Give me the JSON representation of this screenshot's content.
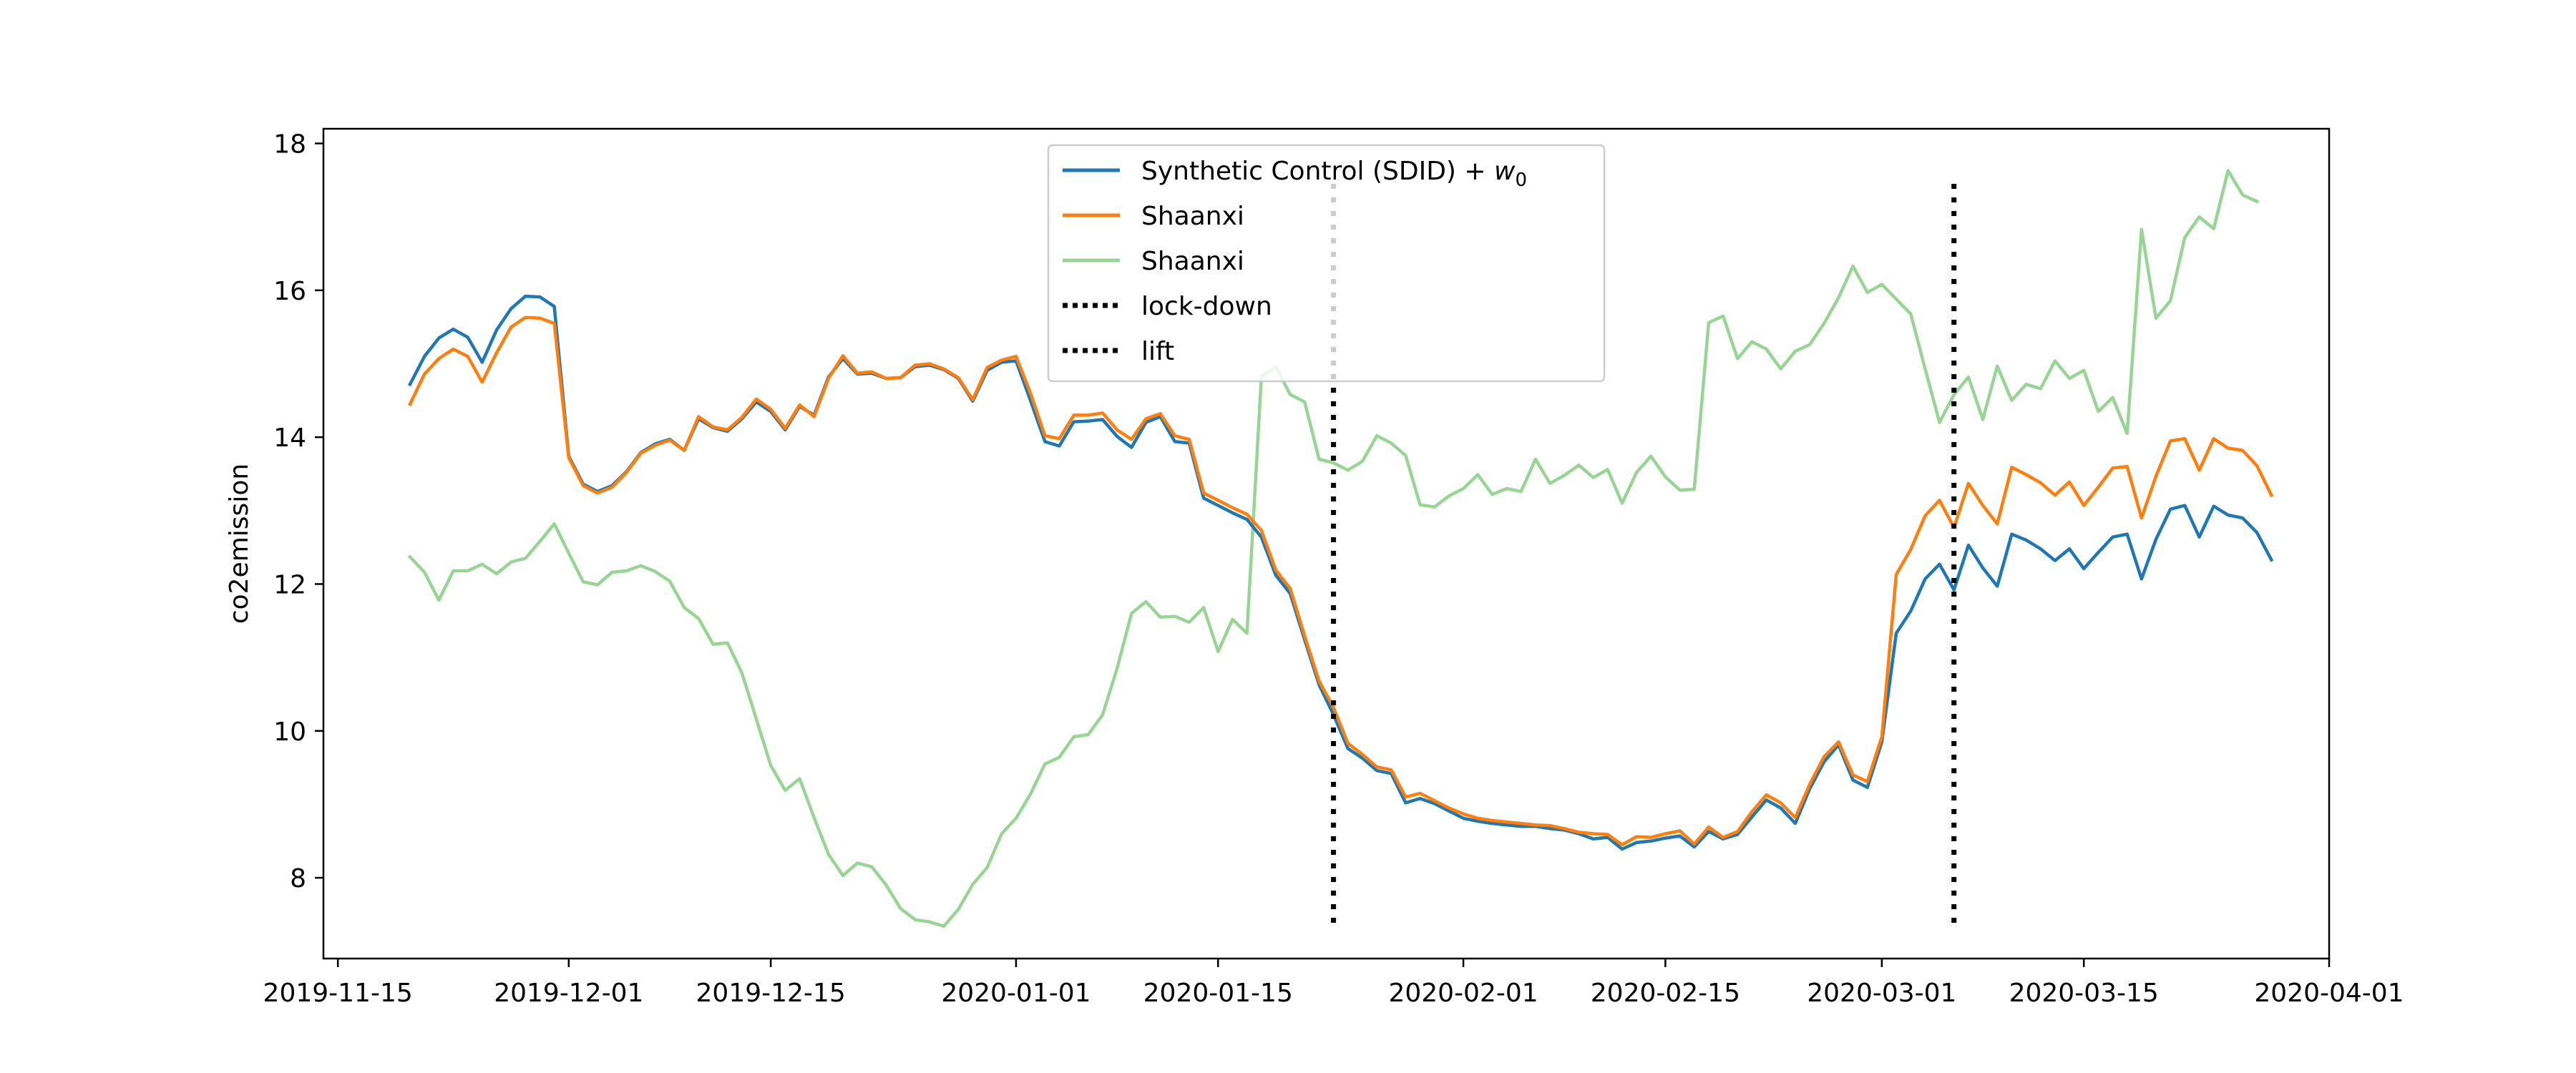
{
  "chart_data": {
    "type": "line",
    "title": "",
    "xlabel": "",
    "ylabel": "co2emission",
    "x_start": "2019-11-20",
    "x_step_days": 1,
    "xlim": [
      "2019-11-14",
      "2020-04-01"
    ],
    "ylim": [
      6.9,
      18.2
    ],
    "x_ticks": [
      "2019-11-15",
      "2019-12-01",
      "2019-12-15",
      "2020-01-01",
      "2020-01-15",
      "2020-02-01",
      "2020-02-15",
      "2020-03-01",
      "2020-03-15",
      "2020-04-01"
    ],
    "y_ticks": [
      8,
      10,
      12,
      14,
      16,
      18
    ],
    "grid": false,
    "legend_position": "top-center",
    "series": [
      {
        "name": "Synthetic Control (SDID) + w0",
        "color": "#1f77b4",
        "style": "solid",
        "values": [
          14.72,
          15.1,
          15.35,
          15.47,
          15.36,
          15.02,
          15.46,
          15.75,
          15.92,
          15.91,
          15.78,
          13.74,
          13.36,
          13.26,
          13.34,
          13.53,
          13.79,
          13.91,
          13.97,
          13.82,
          14.25,
          14.13,
          14.08,
          14.25,
          14.48,
          14.35,
          14.1,
          14.42,
          14.3,
          14.82,
          15.07,
          14.86,
          14.87,
          14.8,
          14.81,
          14.96,
          14.98,
          14.92,
          14.8,
          14.49,
          14.91,
          15.02,
          15.04,
          14.5,
          13.94,
          13.88,
          14.21,
          14.22,
          14.24,
          14.01,
          13.86,
          14.2,
          14.28,
          13.94,
          13.92,
          13.17,
          13.07,
          12.97,
          12.88,
          12.64,
          12.12,
          11.87,
          11.24,
          10.63,
          10.22,
          9.76,
          9.63,
          9.46,
          9.42,
          9.02,
          9.08,
          9.01,
          8.91,
          8.81,
          8.77,
          8.74,
          8.72,
          8.7,
          8.7,
          8.67,
          8.65,
          8.6,
          8.53,
          8.55,
          8.39,
          8.48,
          8.5,
          8.54,
          8.57,
          8.42,
          8.63,
          8.53,
          8.59,
          8.83,
          9.06,
          8.95,
          8.74,
          9.21,
          9.58,
          9.81,
          9.33,
          9.23,
          9.85,
          11.33,
          11.63,
          12.07,
          12.27,
          11.92,
          12.53,
          12.22,
          11.97,
          12.68,
          12.6,
          12.48,
          12.32,
          12.48,
          12.21,
          12.43,
          12.64,
          12.68,
          12.07,
          12.61,
          13.02,
          13.07,
          12.64,
          13.06,
          12.94,
          12.9,
          12.7,
          12.33
        ]
      },
      {
        "name": "Shaanxi",
        "color": "#ff7f0e",
        "style": "solid",
        "values": [
          14.45,
          14.86,
          15.07,
          15.2,
          15.1,
          14.75,
          15.15,
          15.5,
          15.63,
          15.62,
          15.55,
          13.72,
          13.34,
          13.24,
          13.32,
          13.52,
          13.78,
          13.89,
          13.96,
          13.82,
          14.28,
          14.14,
          14.1,
          14.27,
          14.52,
          14.38,
          14.12,
          14.44,
          14.28,
          14.8,
          15.11,
          14.87,
          14.89,
          14.8,
          14.81,
          14.98,
          15.0,
          14.93,
          14.81,
          14.51,
          14.95,
          15.05,
          15.1,
          14.6,
          14.02,
          13.98,
          14.3,
          14.3,
          14.33,
          14.1,
          13.97,
          14.25,
          14.32,
          14.02,
          13.97,
          13.24,
          13.14,
          13.04,
          12.95,
          12.73,
          12.19,
          11.94,
          11.29,
          10.68,
          10.32,
          9.83,
          9.68,
          9.51,
          9.47,
          9.1,
          9.15,
          9.05,
          8.95,
          8.87,
          8.81,
          8.78,
          8.76,
          8.74,
          8.72,
          8.71,
          8.67,
          8.62,
          8.6,
          8.59,
          8.45,
          8.56,
          8.55,
          8.6,
          8.64,
          8.46,
          8.69,
          8.55,
          8.63,
          8.9,
          9.13,
          9.02,
          8.82,
          9.27,
          9.65,
          9.85,
          9.4,
          9.31,
          9.92,
          12.13,
          12.47,
          12.93,
          13.14,
          12.77,
          13.37,
          13.07,
          12.82,
          13.59,
          13.49,
          13.38,
          13.21,
          13.39,
          13.07,
          13.32,
          13.58,
          13.6,
          12.9,
          13.47,
          13.95,
          13.98,
          13.55,
          13.98,
          13.85,
          13.82,
          13.61,
          13.21
        ]
      },
      {
        "name": "Shaanxi",
        "color": "#98d594",
        "style": "solid",
        "values": [
          12.37,
          12.16,
          11.78,
          12.18,
          12.18,
          12.27,
          12.14,
          12.3,
          12.35,
          12.58,
          12.82,
          12.42,
          12.03,
          11.99,
          12.16,
          12.18,
          12.25,
          12.17,
          12.04,
          11.68,
          11.53,
          11.18,
          11.2,
          10.79,
          10.16,
          9.53,
          9.19,
          9.35,
          8.82,
          8.32,
          8.03,
          8.2,
          8.15,
          7.9,
          7.58,
          7.43,
          7.4,
          7.34,
          7.57,
          7.91,
          8.14,
          8.6,
          8.81,
          9.14,
          9.55,
          9.64,
          9.92,
          9.95,
          10.22,
          10.85,
          11.6,
          11.76,
          11.55,
          11.56,
          11.48,
          11.68,
          11.08,
          11.52,
          11.33,
          14.82,
          14.96,
          14.58,
          14.48,
          13.7,
          13.65,
          13.55,
          13.67,
          14.02,
          13.92,
          13.75,
          13.08,
          13.05,
          13.2,
          13.3,
          13.49,
          13.22,
          13.3,
          13.26,
          13.7,
          13.37,
          13.48,
          13.62,
          13.45,
          13.56,
          13.1,
          13.52,
          13.74,
          13.46,
          13.28,
          13.29,
          15.56,
          15.65,
          15.07,
          15.3,
          15.2,
          14.93,
          15.17,
          15.26,
          15.55,
          15.9,
          16.33,
          15.97,
          16.08,
          15.88,
          15.68,
          14.93,
          14.2,
          14.58,
          14.82,
          14.24,
          14.97,
          14.5,
          14.72,
          14.66,
          15.04,
          14.8,
          14.91,
          14.35,
          14.54,
          14.05,
          16.83,
          15.62,
          15.86,
          16.72,
          17.0,
          16.84,
          17.63,
          17.3,
          17.21
        ]
      }
    ],
    "vlines": [
      {
        "name": "lock-down",
        "x": "2020-01-23",
        "color": "#000000",
        "style": "dotted"
      },
      {
        "name": "lift",
        "x": "2020-03-06",
        "color": "#000000",
        "style": "dotted"
      }
    ],
    "legend": [
      {
        "label": "Synthetic Control (SDID) + ",
        "math": "w",
        "sub": "0",
        "color": "#1f77b4",
        "style": "solid"
      },
      {
        "label": "Shaanxi",
        "color": "#ff7f0e",
        "style": "solid"
      },
      {
        "label": "Shaanxi",
        "color": "#98d594",
        "style": "solid"
      },
      {
        "label": "lock-down",
        "color": "#000000",
        "style": "dotted"
      },
      {
        "label": "lift",
        "color": "#000000",
        "style": "dotted"
      }
    ]
  }
}
